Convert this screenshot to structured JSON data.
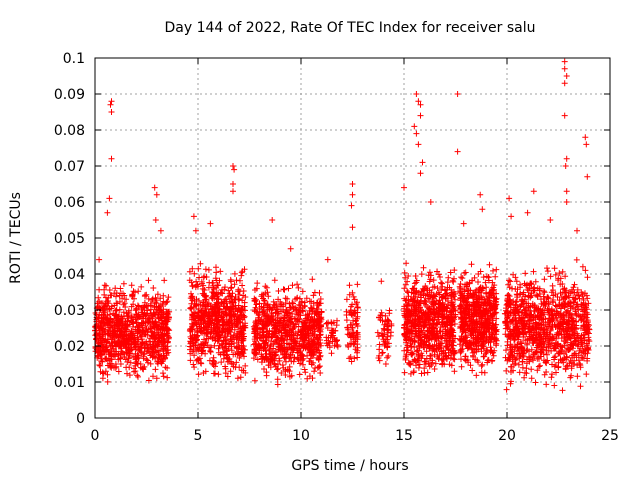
{
  "chart_data": {
    "type": "scatter",
    "title": "Day 144 of 2022, Rate Of TEC Index for receiver salu",
    "xlabel": "GPS time / hours",
    "ylabel": "ROTI / TECUs",
    "xlim": [
      0,
      25
    ],
    "ylim": [
      0,
      0.1
    ],
    "x_ticks": [
      0,
      5,
      10,
      15,
      20,
      25
    ],
    "x_tick_labels": [
      "0",
      "5",
      "10",
      "15",
      "20",
      "25"
    ],
    "y_ticks": [
      0,
      0.01,
      0.02,
      0.03,
      0.04,
      0.05,
      0.06,
      0.07,
      0.08,
      0.09,
      0.1
    ],
    "y_tick_labels": [
      "0",
      "0.01",
      "0.02",
      "0.03",
      "0.04",
      "0.05",
      "0.06",
      "0.07",
      "0.08",
      "0.09",
      "0.1"
    ],
    "grid": true,
    "marker": "+",
    "color": "#ff0000",
    "series": [
      {
        "name": "ROTI",
        "clusters": [
          {
            "x": [
              0.0,
              3.6
            ],
            "y": [
              0.008,
              0.04
            ],
            "n": 900
          },
          {
            "x": [
              4.6,
              7.3
            ],
            "y": [
              0.008,
              0.045
            ],
            "n": 700
          },
          {
            "x": [
              7.7,
              11.0
            ],
            "y": [
              0.008,
              0.04
            ],
            "n": 800
          },
          {
            "x": [
              11.2,
              11.8
            ],
            "y": [
              0.015,
              0.03
            ],
            "n": 40
          },
          {
            "x": [
              12.2,
              12.8
            ],
            "y": [
              0.012,
              0.04
            ],
            "n": 80
          },
          {
            "x": [
              13.7,
              14.4
            ],
            "y": [
              0.012,
              0.035
            ],
            "n": 60
          },
          {
            "x": [
              15.0,
              17.5
            ],
            "y": [
              0.008,
              0.045
            ],
            "n": 750
          },
          {
            "x": [
              17.7,
              19.5
            ],
            "y": [
              0.01,
              0.045
            ],
            "n": 600
          },
          {
            "x": [
              19.9,
              24.0
            ],
            "y": [
              0.006,
              0.045
            ],
            "n": 1000
          }
        ],
        "spikes": [
          {
            "x": 0.8,
            "y": 0.088
          },
          {
            "x": 0.8,
            "y": 0.085
          },
          {
            "x": 0.75,
            "y": 0.087
          },
          {
            "x": 0.8,
            "y": 0.072
          },
          {
            "x": 0.7,
            "y": 0.061
          },
          {
            "x": 0.2,
            "y": 0.044
          },
          {
            "x": 0.6,
            "y": 0.057
          },
          {
            "x": 2.9,
            "y": 0.064
          },
          {
            "x": 3.0,
            "y": 0.062
          },
          {
            "x": 2.95,
            "y": 0.055
          },
          {
            "x": 3.2,
            "y": 0.052
          },
          {
            "x": 4.8,
            "y": 0.056
          },
          {
            "x": 4.9,
            "y": 0.052
          },
          {
            "x": 5.6,
            "y": 0.054
          },
          {
            "x": 6.7,
            "y": 0.07
          },
          {
            "x": 6.75,
            "y": 0.069
          },
          {
            "x": 6.7,
            "y": 0.065
          },
          {
            "x": 6.7,
            "y": 0.063
          },
          {
            "x": 8.6,
            "y": 0.055
          },
          {
            "x": 9.5,
            "y": 0.047
          },
          {
            "x": 11.3,
            "y": 0.044
          },
          {
            "x": 12.5,
            "y": 0.065
          },
          {
            "x": 12.5,
            "y": 0.062
          },
          {
            "x": 12.45,
            "y": 0.059
          },
          {
            "x": 12.5,
            "y": 0.053
          },
          {
            "x": 13.9,
            "y": 0.038
          },
          {
            "x": 15.0,
            "y": 0.064
          },
          {
            "x": 15.6,
            "y": 0.09
          },
          {
            "x": 15.7,
            "y": 0.088
          },
          {
            "x": 15.8,
            "y": 0.087
          },
          {
            "x": 15.8,
            "y": 0.084
          },
          {
            "x": 15.5,
            "y": 0.081
          },
          {
            "x": 15.6,
            "y": 0.079
          },
          {
            "x": 15.7,
            "y": 0.076
          },
          {
            "x": 15.9,
            "y": 0.071
          },
          {
            "x": 15.8,
            "y": 0.068
          },
          {
            "x": 16.3,
            "y": 0.06
          },
          {
            "x": 17.6,
            "y": 0.09
          },
          {
            "x": 17.6,
            "y": 0.074
          },
          {
            "x": 17.9,
            "y": 0.054
          },
          {
            "x": 18.7,
            "y": 0.062
          },
          {
            "x": 18.8,
            "y": 0.058
          },
          {
            "x": 20.1,
            "y": 0.061
          },
          {
            "x": 20.2,
            "y": 0.056
          },
          {
            "x": 21.0,
            "y": 0.057
          },
          {
            "x": 21.3,
            "y": 0.063
          },
          {
            "x": 22.8,
            "y": 0.099
          },
          {
            "x": 22.8,
            "y": 0.097
          },
          {
            "x": 22.9,
            "y": 0.095
          },
          {
            "x": 22.8,
            "y": 0.093
          },
          {
            "x": 22.8,
            "y": 0.084
          },
          {
            "x": 22.9,
            "y": 0.072
          },
          {
            "x": 22.85,
            "y": 0.07
          },
          {
            "x": 22.9,
            "y": 0.063
          },
          {
            "x": 22.9,
            "y": 0.06
          },
          {
            "x": 22.1,
            "y": 0.055
          },
          {
            "x": 23.8,
            "y": 0.078
          },
          {
            "x": 23.85,
            "y": 0.076
          },
          {
            "x": 23.9,
            "y": 0.067
          },
          {
            "x": 23.4,
            "y": 0.052
          }
        ]
      }
    ]
  }
}
